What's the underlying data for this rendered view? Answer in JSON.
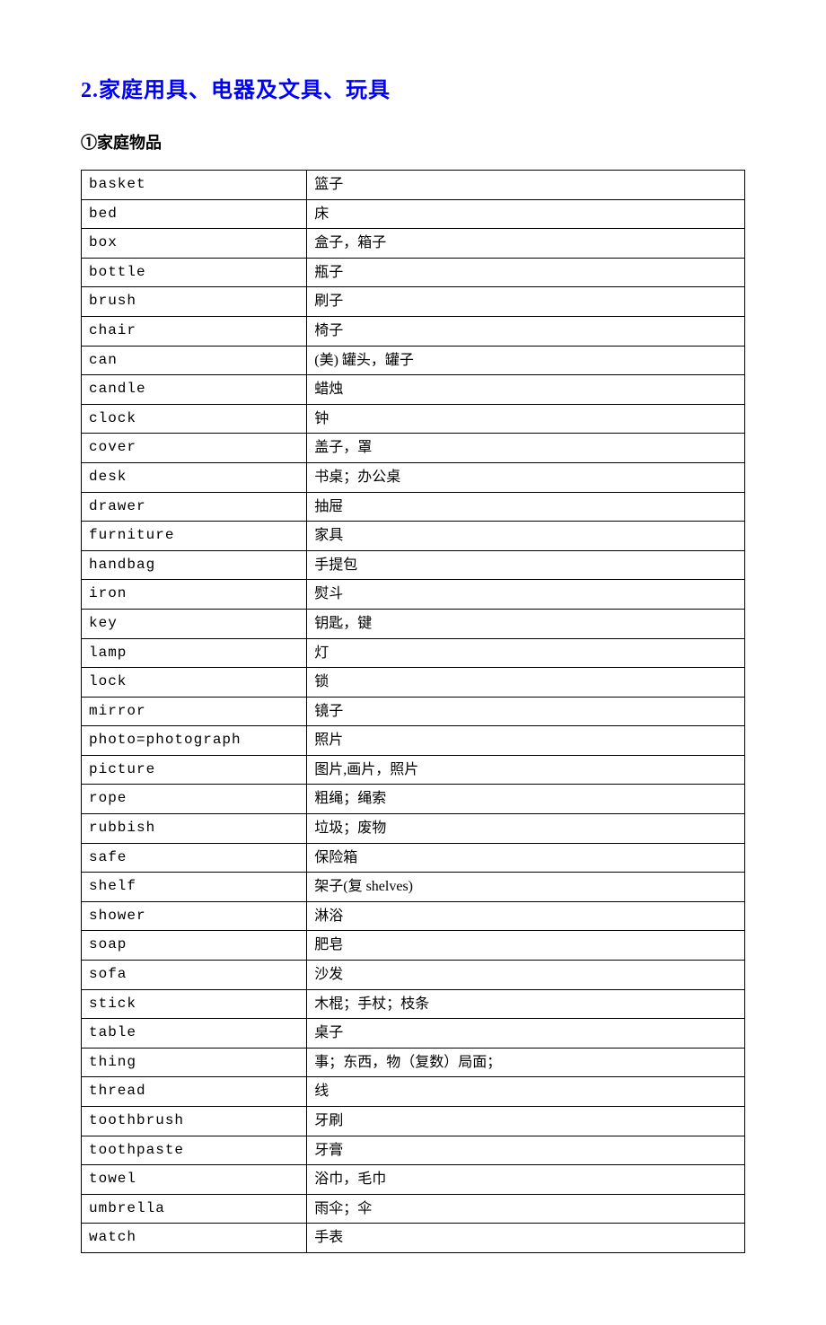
{
  "title": {
    "main": "2.家庭用具、电器及文具、玩具",
    "sub": "①家庭物品"
  },
  "table": {
    "colors": {
      "border": "#000000",
      "title": "#0000ff",
      "text": "#000000",
      "background": "#ffffff"
    },
    "columns": [
      "english",
      "chinese"
    ],
    "column_widths": [
      "34%",
      "66%"
    ],
    "font": {
      "english_family": "Courier New, monospace",
      "chinese_family": "SimSun, 宋体, serif",
      "cell_size": 16,
      "title_size": 24,
      "subtitle_size": 18
    },
    "rows": [
      {
        "english": "basket",
        "chinese": "篮子"
      },
      {
        "english": "bed",
        "chinese": "床"
      },
      {
        "english": "box",
        "chinese": "盒子，箱子"
      },
      {
        "english": "bottle",
        "chinese": "瓶子"
      },
      {
        "english": "brush",
        "chinese": "刷子"
      },
      {
        "english": "chair",
        "chinese": "椅子"
      },
      {
        "english": "can",
        "chinese": "(美) 罐头，罐子"
      },
      {
        "english": "candle",
        "chinese": "蜡烛"
      },
      {
        "english": "clock",
        "chinese": "钟"
      },
      {
        "english": "cover",
        "chinese": "盖子，罩"
      },
      {
        "english": "desk",
        "chinese": "书桌；办公桌"
      },
      {
        "english": "drawer",
        "chinese": "抽屉"
      },
      {
        "english": "furniture",
        "chinese": "家具"
      },
      {
        "english": "handbag",
        "chinese": "手提包"
      },
      {
        "english": "iron",
        "chinese": "熨斗"
      },
      {
        "english": "key",
        "chinese": "钥匙，键"
      },
      {
        "english": "lamp",
        "chinese": "灯"
      },
      {
        "english": "lock",
        "chinese": "锁"
      },
      {
        "english": "mirror",
        "chinese": "镜子"
      },
      {
        "english": "photo=photograph",
        "chinese": "照片"
      },
      {
        "english": "picture",
        "chinese": "图片,画片，照片"
      },
      {
        "english": "rope",
        "chinese": "粗绳；绳索"
      },
      {
        "english": "rubbish",
        "chinese": "垃圾；废物"
      },
      {
        "english": "safe",
        "chinese": "保险箱"
      },
      {
        "english": "shelf",
        "chinese": "架子(复 shelves)"
      },
      {
        "english": "shower",
        "chinese": "淋浴"
      },
      {
        "english": "soap",
        "chinese": "肥皂"
      },
      {
        "english": "sofa",
        "chinese": "沙发"
      },
      {
        "english": "stick",
        "chinese": "木棍；手杖；枝条"
      },
      {
        "english": "table",
        "chinese": "桌子"
      },
      {
        "english": "thing",
        "chinese": "事；东西，物（复数）局面；"
      },
      {
        "english": "thread",
        "chinese": "线"
      },
      {
        "english": "toothbrush",
        "chinese": "牙刷"
      },
      {
        "english": "toothpaste",
        "chinese": "牙膏"
      },
      {
        "english": "towel",
        "chinese": "浴巾，毛巾"
      },
      {
        "english": "umbrella",
        "chinese": "雨伞；伞"
      },
      {
        "english": "watch",
        "chinese": "手表"
      }
    ]
  }
}
